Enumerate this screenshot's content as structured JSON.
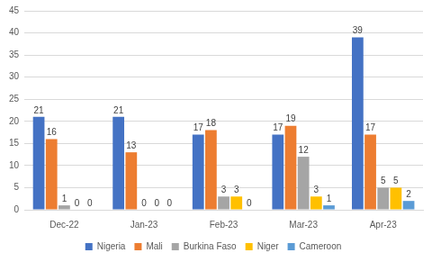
{
  "chart_data": {
    "type": "bar",
    "categories": [
      "Dec-22",
      "Jan-23",
      "Feb-23",
      "Mar-23",
      "Apr-23"
    ],
    "series": [
      {
        "name": "Nigeria",
        "color": "#4472c4",
        "values": [
          21,
          21,
          17,
          17,
          39
        ]
      },
      {
        "name": "Mali",
        "color": "#ed7d31",
        "values": [
          16,
          13,
          18,
          19,
          17
        ]
      },
      {
        "name": "Burkina Faso",
        "color": "#a5a5a5",
        "values": [
          1,
          0,
          3,
          12,
          5
        ]
      },
      {
        "name": "Niger",
        "color": "#ffc000",
        "values": [
          0,
          0,
          3,
          3,
          5
        ]
      },
      {
        "name": "Cameroon",
        "color": "#5b9bd5",
        "values": [
          0,
          0,
          0,
          1,
          2
        ]
      }
    ],
    "ylim": [
      0,
      45
    ],
    "yticks": [
      0,
      5,
      10,
      15,
      20,
      25,
      30,
      35,
      40,
      45
    ],
    "grid": true,
    "legend": "bottom",
    "data_labels": true
  }
}
